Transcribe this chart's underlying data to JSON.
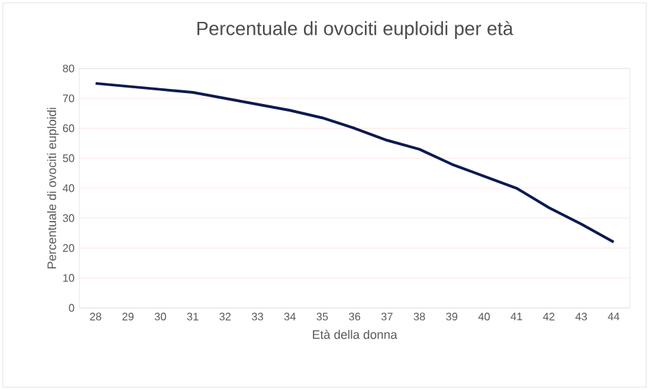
{
  "chart_data": {
    "type": "line",
    "title": "Percentuale di ovociti euploidi per età",
    "xlabel": "Età della donna",
    "ylabel": "Percentuale di ovociti euploidi",
    "categories": [
      "28",
      "29",
      "30",
      "31",
      "32",
      "33",
      "34",
      "35",
      "36",
      "37",
      "38",
      "39",
      "40",
      "41",
      "42",
      "43",
      "44"
    ],
    "series": [
      {
        "color": "#0c1a4e",
        "values": [
          75,
          74,
          73,
          72,
          70,
          68,
          66,
          63.5,
          60,
          56,
          53,
          48,
          44,
          40,
          33.5,
          28,
          22
        ]
      }
    ],
    "ylim": [
      0,
      80
    ],
    "yticks": [
      0,
      10,
      20,
      30,
      40,
      50,
      60,
      70,
      80
    ],
    "grid": "y",
    "marker": "none",
    "line_style": "solid"
  }
}
